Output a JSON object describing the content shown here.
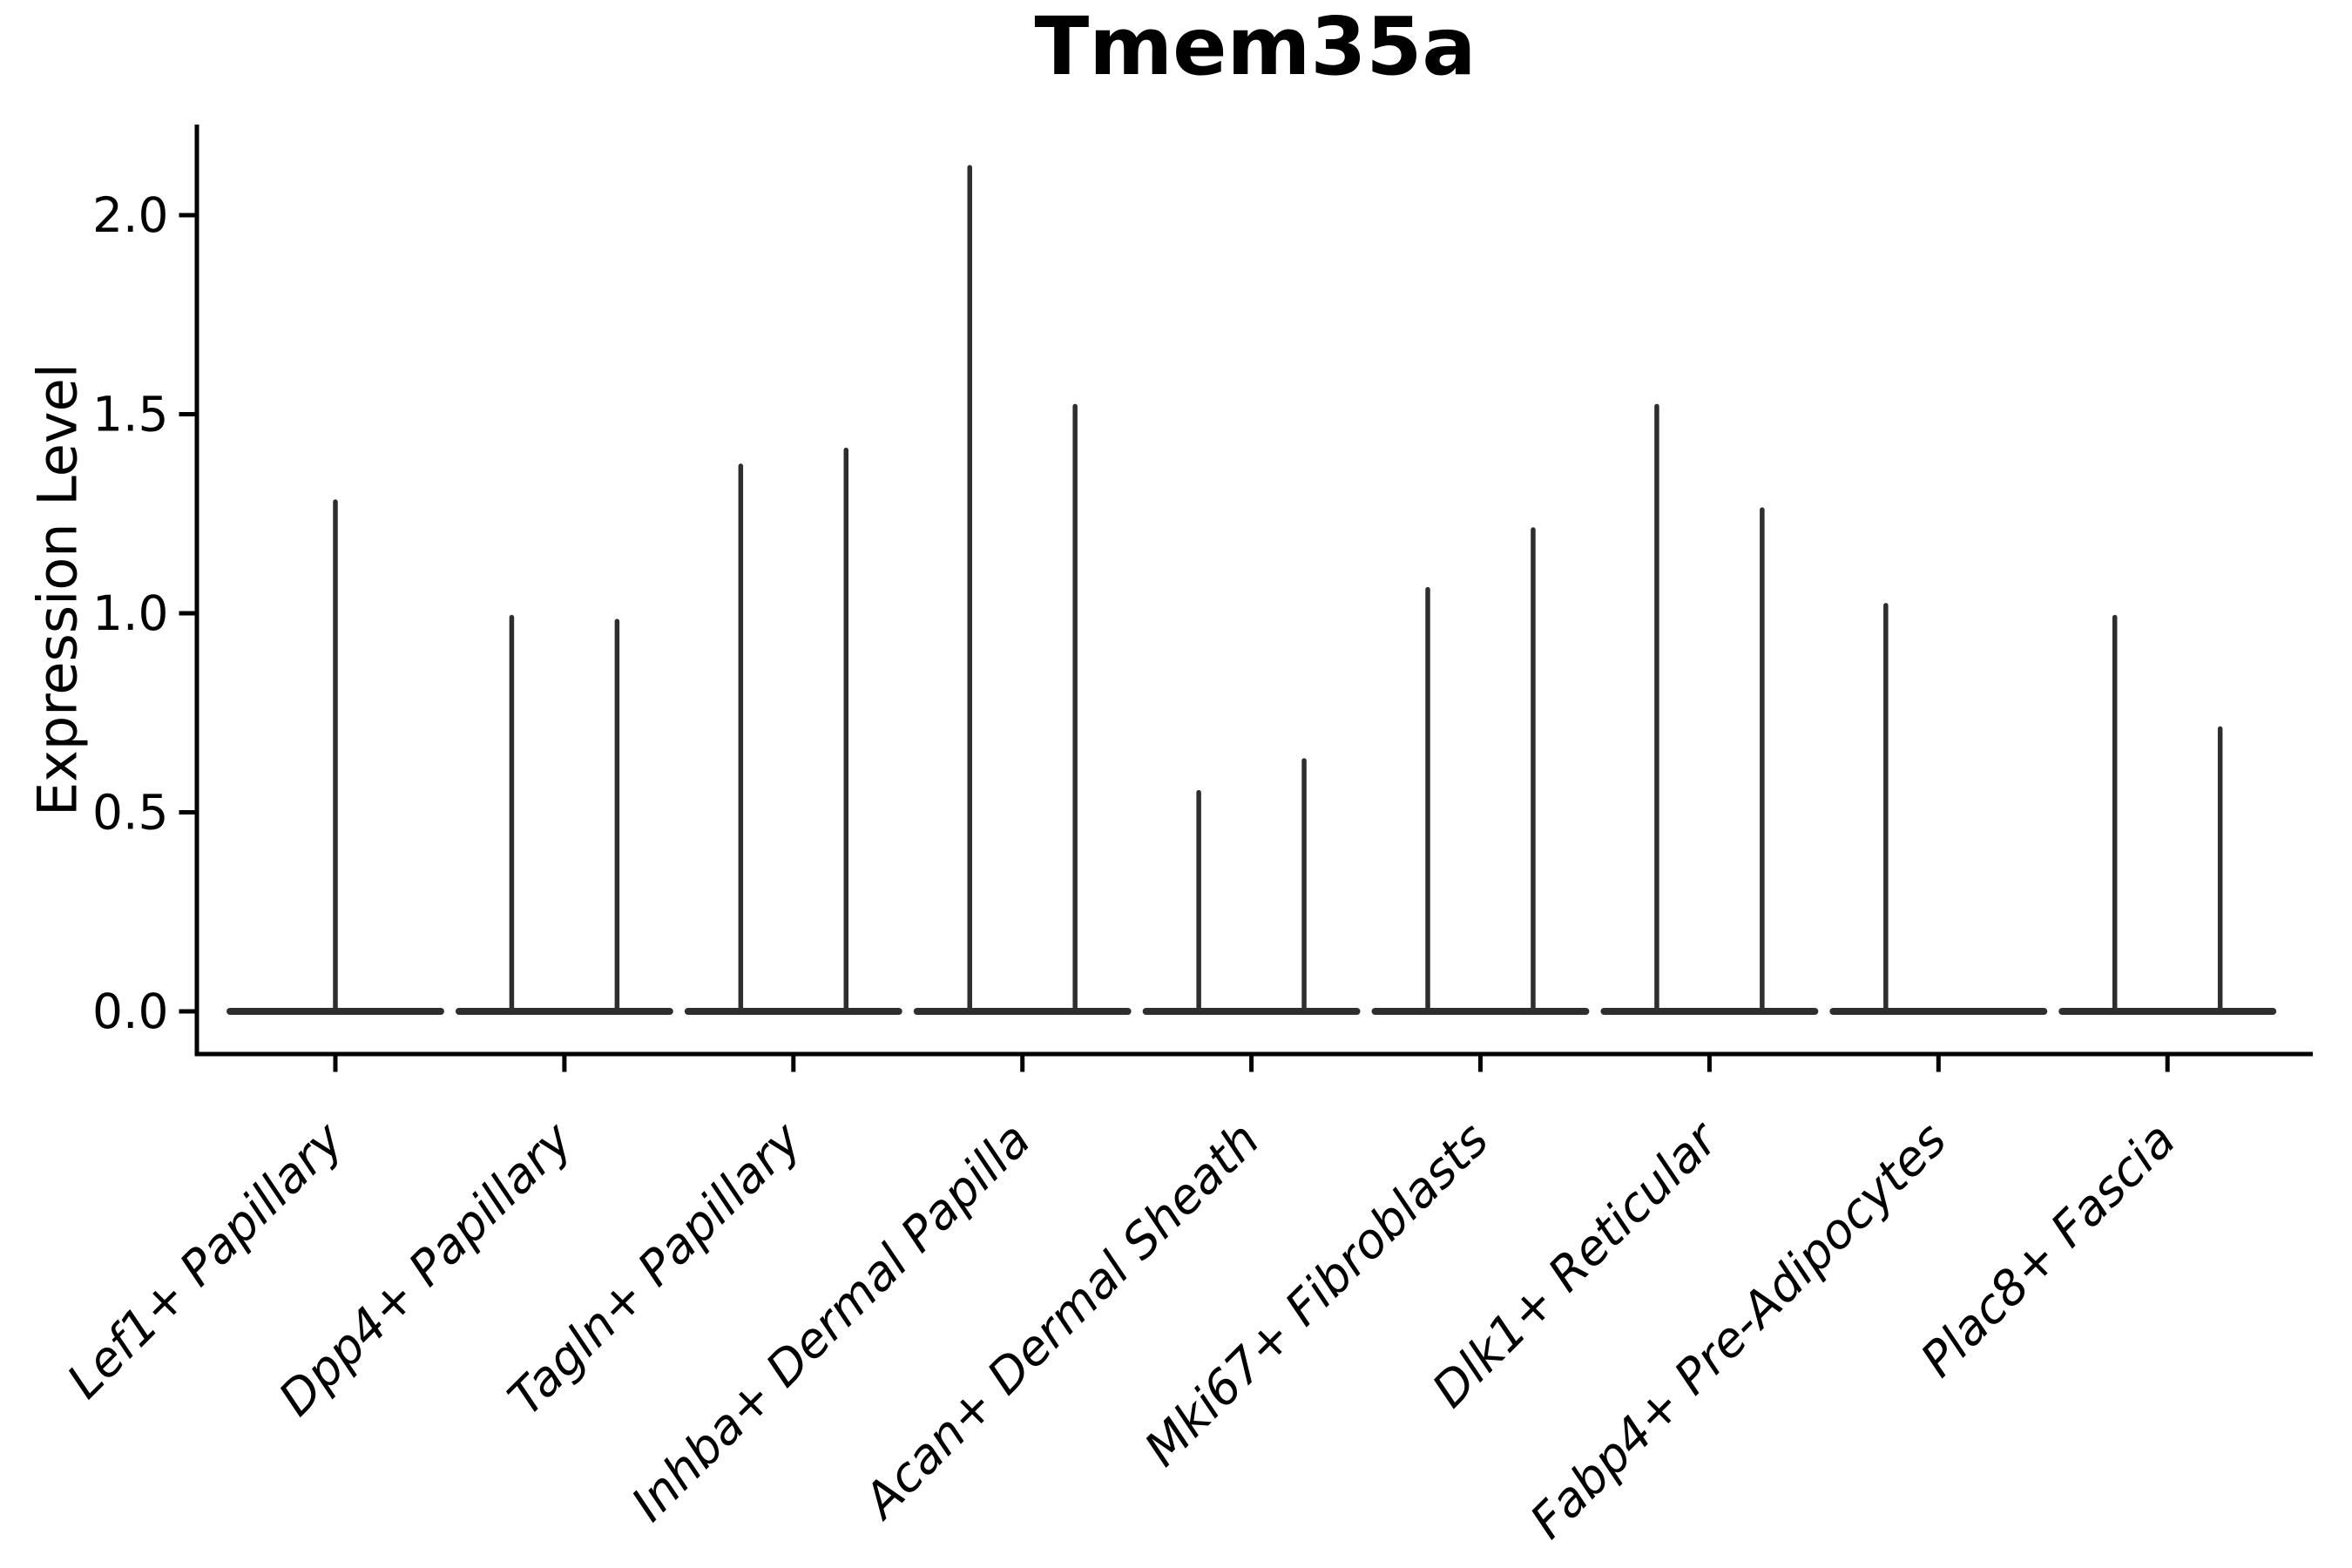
{
  "chart_data": {
    "type": "violin",
    "title": "Tmem35a",
    "ylabel": "Expression Level",
    "xlabel": "",
    "grid": false,
    "legend_position": "none",
    "violin_color": "#2e2e2e",
    "axis_color": "#000000",
    "background_color": "#ffffff",
    "ytick_labels": [
      "0.0",
      "0.5",
      "1.0",
      "1.5",
      "2.0"
    ],
    "ytick_values": [
      0.0,
      0.5,
      1.0,
      1.5,
      2.0
    ],
    "ylim": [
      -0.11,
      2.23
    ],
    "categories": [
      "Lef1+ Papillary",
      "Dpp4+ Papillary",
      "Tagln+ Papillary",
      "Inhba+ Dermal Papilla",
      "Acan+ Dermal Sheath",
      "Mki67+ Fibroblasts",
      "Dlk1+ Reticular",
      "Fabp4+ Pre-Adipocytes",
      "Plac8+ Fascia"
    ],
    "baseline_value": 0.0,
    "base_halfwidth": 0.46,
    "violins": [
      {
        "category": "Lef1+ Papillary",
        "spikes": [
          {
            "offset": 0.0,
            "max": 1.28
          }
        ]
      },
      {
        "category": "Dpp4+ Papillary",
        "spikes": [
          {
            "offset": -0.23,
            "max": 0.99
          },
          {
            "offset": 0.23,
            "max": 0.98
          }
        ]
      },
      {
        "category": "Tagln+ Papillary",
        "spikes": [
          {
            "offset": -0.23,
            "max": 1.37
          },
          {
            "offset": 0.23,
            "max": 1.41
          }
        ]
      },
      {
        "category": "Inhba+ Dermal Papilla",
        "spikes": [
          {
            "offset": -0.23,
            "max": 2.12
          },
          {
            "offset": 0.23,
            "max": 1.52
          }
        ]
      },
      {
        "category": "Acan+ Dermal Sheath",
        "spikes": [
          {
            "offset": -0.23,
            "max": 0.55
          },
          {
            "offset": 0.23,
            "max": 0.63
          }
        ]
      },
      {
        "category": "Mki67+ Fibroblasts",
        "spikes": [
          {
            "offset": -0.23,
            "max": 1.06
          },
          {
            "offset": 0.23,
            "max": 1.21
          }
        ]
      },
      {
        "category": "Dlk1+ Reticular",
        "spikes": [
          {
            "offset": -0.23,
            "max": 1.52
          },
          {
            "offset": 0.23,
            "max": 1.26
          }
        ]
      },
      {
        "category": "Fabp4+ Pre-Adipocytes",
        "spikes": [
          {
            "offset": -0.23,
            "max": 1.02
          }
        ]
      },
      {
        "category": "Plac8+ Fascia",
        "spikes": [
          {
            "offset": -0.23,
            "max": 0.99
          },
          {
            "offset": 0.23,
            "max": 0.71
          }
        ]
      }
    ]
  }
}
